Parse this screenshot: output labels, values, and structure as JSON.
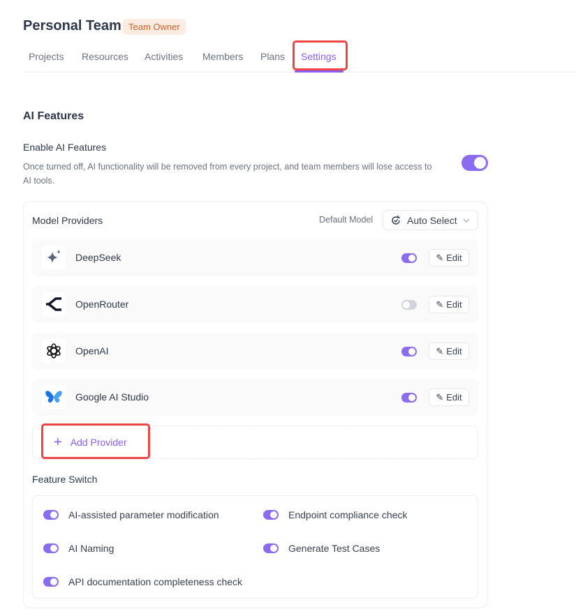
{
  "header": {
    "title": "Personal Team",
    "badge": "Team Owner"
  },
  "tabs": [
    {
      "label": "Projects"
    },
    {
      "label": "Resources"
    },
    {
      "label": "Activities"
    },
    {
      "label": "Members"
    },
    {
      "label": "Plans"
    },
    {
      "label": "Settings",
      "active": true
    }
  ],
  "ai": {
    "section_title": "AI Features",
    "enable_title": "Enable AI Features",
    "enable_desc": "Once turned off, AI functionality will be removed from every project, and team members will lose access to AI tools.",
    "enabled": true
  },
  "providers": {
    "title": "Model Providers",
    "default_model_label": "Default Model",
    "default_model_value": "Auto Select",
    "edit_label": "Edit",
    "add_label": "Add Provider",
    "items": [
      {
        "name": "DeepSeek",
        "icon": "sparkle-icon",
        "enabled": true
      },
      {
        "name": "OpenRouter",
        "icon": "openrouter-icon",
        "enabled": false
      },
      {
        "name": "OpenAI",
        "icon": "openai-icon",
        "enabled": true
      },
      {
        "name": "Google AI Studio",
        "icon": "google-ai-studio-icon",
        "enabled": true
      }
    ]
  },
  "features": {
    "title": "Feature Switch",
    "items": [
      {
        "label": "AI-assisted parameter modification",
        "enabled": true
      },
      {
        "label": "Endpoint compliance check",
        "enabled": true
      },
      {
        "label": "AI Naming",
        "enabled": true
      },
      {
        "label": "Generate Test Cases",
        "enabled": true
      },
      {
        "label": "API documentation completeness check",
        "enabled": true
      }
    ]
  },
  "colors": {
    "accent": "#8b5cf6",
    "badge_text": "#d1602a",
    "badge_bg": "#fdece2",
    "highlight": "#ef4444"
  }
}
